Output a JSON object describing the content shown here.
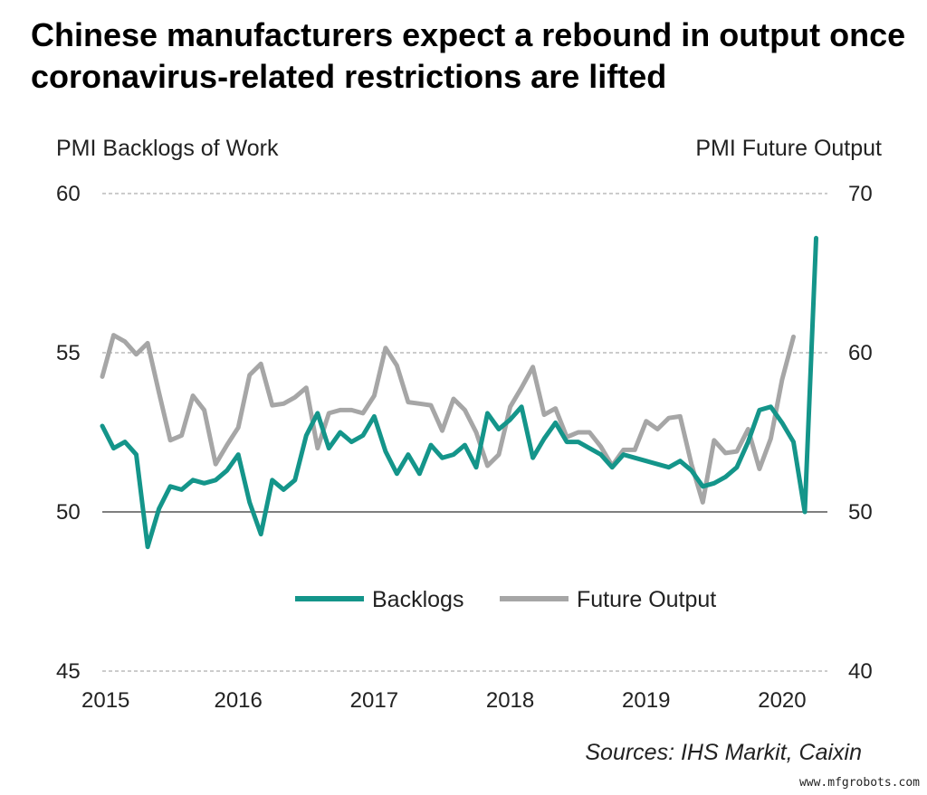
{
  "title": "Chinese manufacturers expect a rebound in output once coronavirus-related restrictions are lifted",
  "source": "Sources: IHS Markit, Caixin",
  "watermark": "www.mfgrobots.com",
  "colors": {
    "backlogs": "#14958a",
    "future_output": "#a6a6a6",
    "grid": "#9a9a9a",
    "baseline": "#7f7f7f"
  },
  "chart_data": {
    "type": "line",
    "x_start": "2015-01",
    "frequency": "monthly",
    "x_ticks": [
      "2015",
      "2016",
      "2017",
      "2018",
      "2019",
      "2020"
    ],
    "left_axis": {
      "label": "PMI Backlogs of Work",
      "ylim": [
        45,
        60
      ],
      "ticks": [
        45,
        50,
        55,
        60
      ]
    },
    "right_axis": {
      "label": "PMI Future Output",
      "ylim": [
        40,
        70
      ],
      "ticks": [
        40,
        50,
        60,
        70
      ]
    },
    "grid": "dashed horizontal",
    "legend_position": "bottom-center",
    "series": [
      {
        "name": "Backlogs",
        "axis": "left",
        "values": [
          52.7,
          52.0,
          52.2,
          51.8,
          48.9,
          50.1,
          50.8,
          50.7,
          51.0,
          50.9,
          51.0,
          51.3,
          51.8,
          50.3,
          49.3,
          51.0,
          50.7,
          51.0,
          52.4,
          53.1,
          52.0,
          52.5,
          52.2,
          52.4,
          53.0,
          51.9,
          51.2,
          51.8,
          51.2,
          52.1,
          51.7,
          51.8,
          52.1,
          51.4,
          53.1,
          52.6,
          52.9,
          53.3,
          51.7,
          52.3,
          52.8,
          52.2,
          52.2,
          52.0,
          51.8,
          51.4,
          51.8,
          51.7,
          51.6,
          51.5,
          51.4,
          51.6,
          51.3,
          50.8,
          50.9,
          51.1,
          51.4,
          52.2,
          53.2,
          53.3,
          52.8,
          52.2,
          50.0,
          58.6
        ]
      },
      {
        "name": "Future Output",
        "axis": "right",
        "values": [
          58.5,
          61.1,
          60.7,
          59.9,
          60.6,
          57.5,
          54.5,
          54.8,
          57.3,
          56.4,
          53.0,
          54.2,
          55.3,
          58.6,
          59.3,
          56.7,
          56.8,
          57.2,
          57.8,
          54.0,
          56.2,
          56.4,
          56.4,
          56.2,
          57.3,
          60.3,
          59.2,
          56.9,
          56.8,
          56.7,
          55.1,
          57.1,
          56.4,
          55.0,
          52.9,
          53.6,
          56.6,
          57.8,
          59.1,
          56.1,
          56.5,
          54.7,
          55.0,
          55.0,
          54.1,
          52.9,
          53.9,
          53.9,
          55.7,
          55.2,
          55.9,
          56.0,
          53.0,
          50.6,
          54.5,
          53.7,
          53.8,
          55.2,
          52.7,
          54.6,
          58.3,
          61.0
        ]
      }
    ]
  }
}
